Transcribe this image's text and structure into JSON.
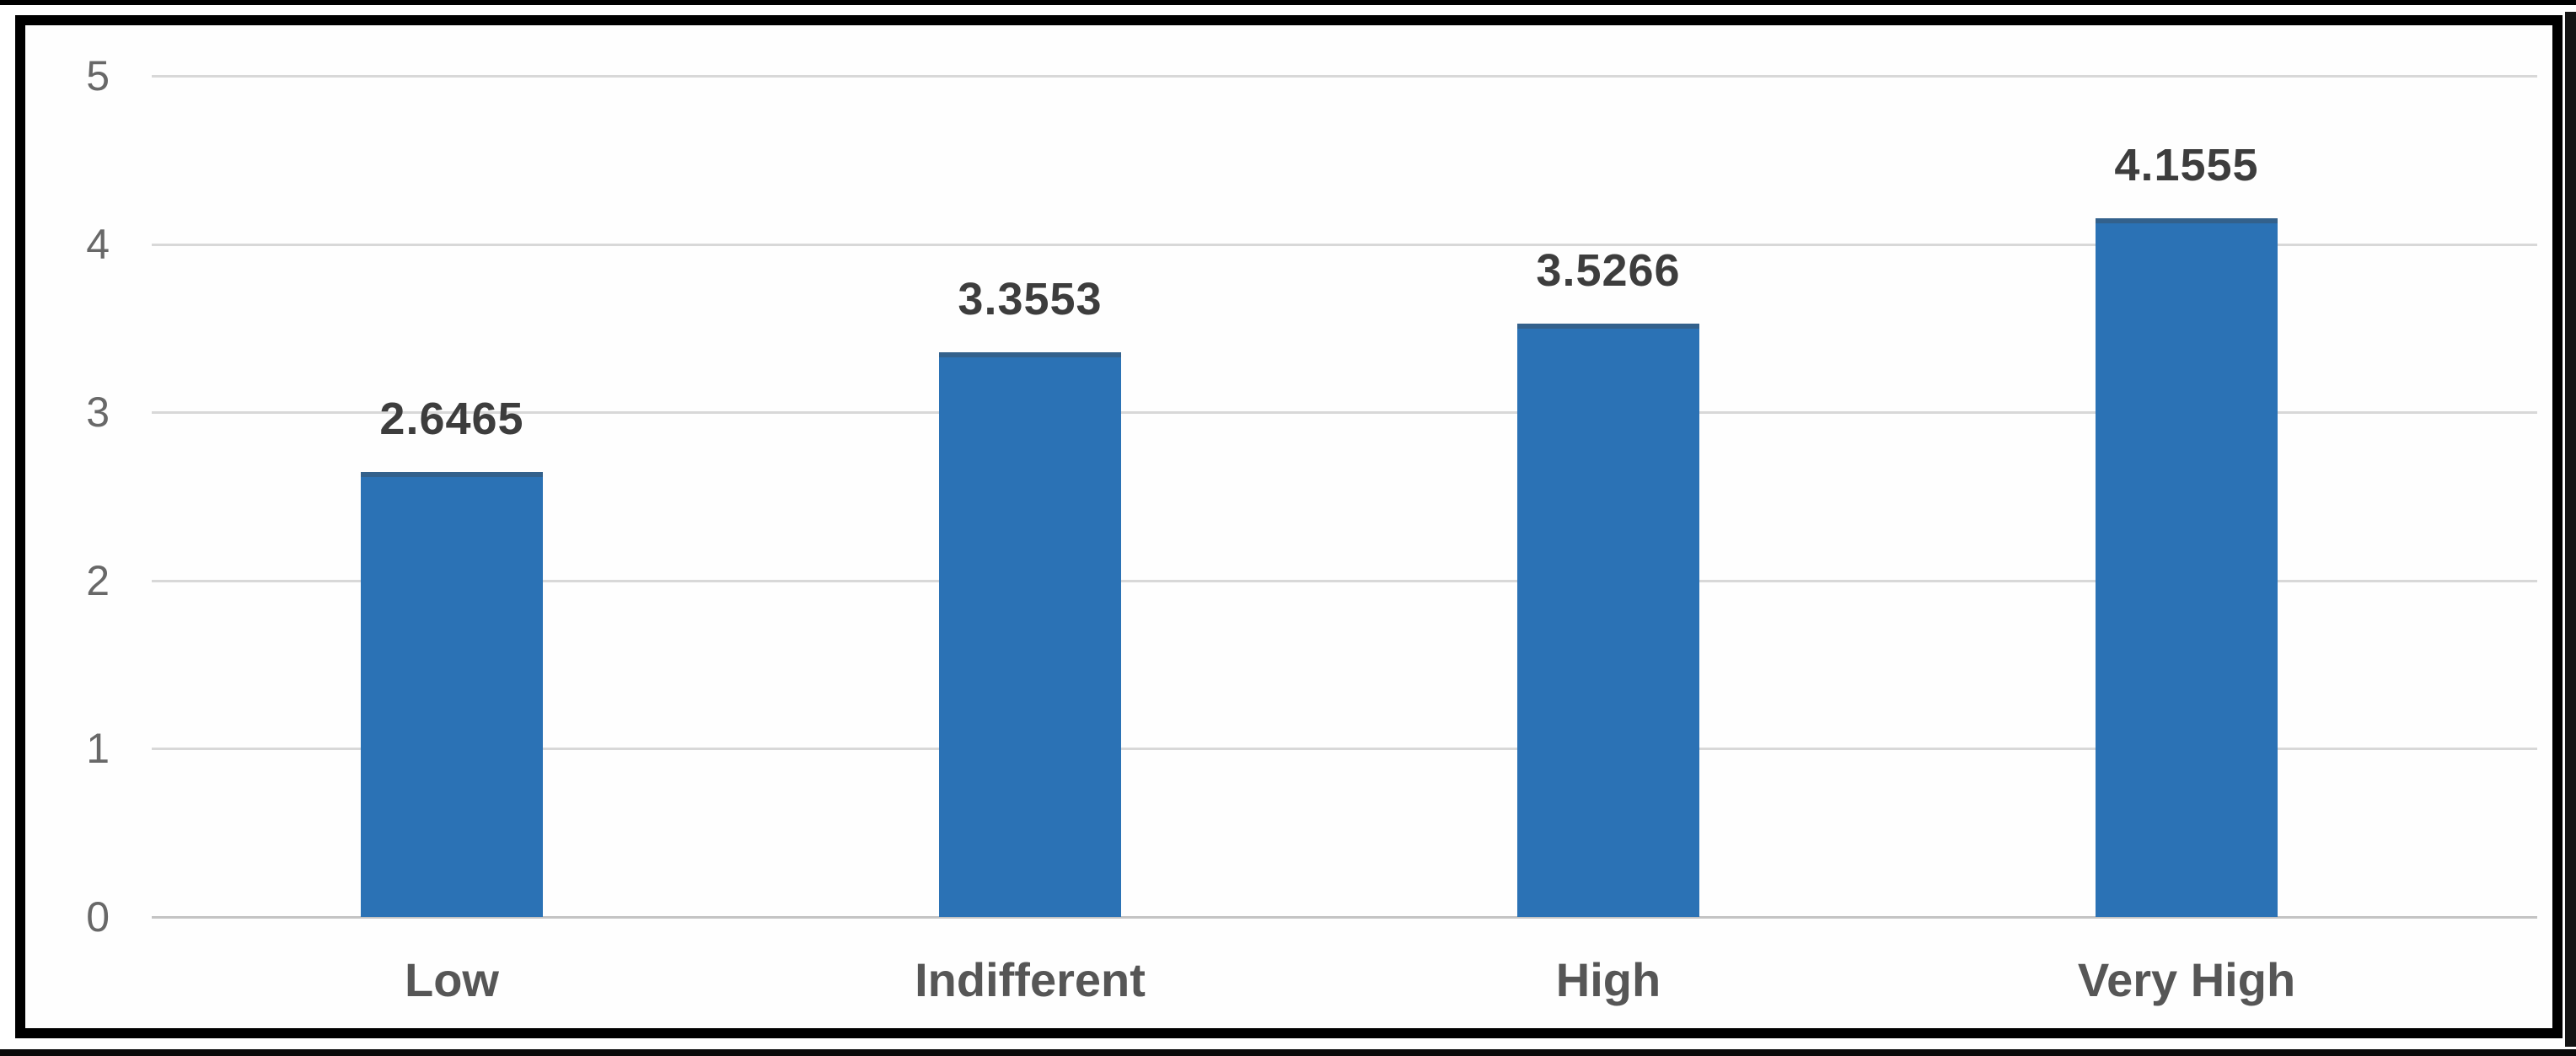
{
  "figure": {
    "kind": "excel-style column chart",
    "border_color": "#000000",
    "background_color": "#FFFFFF"
  },
  "chart_data": {
    "type": "bar",
    "title": "",
    "xlabel": "",
    "ylabel": "",
    "categories": [
      "Low",
      "Indifferent",
      "High",
      "Very High"
    ],
    "values": [
      2.6465,
      3.3553,
      3.5266,
      4.1555
    ],
    "value_labels": [
      "2.6465",
      "3.3553",
      "3.5266",
      "4.1555"
    ],
    "yticks": [
      "0",
      "1",
      "2",
      "3",
      "4",
      "5"
    ],
    "ylim": [
      0,
      5
    ],
    "grid": true,
    "legend": false,
    "colors": {
      "bar": "#2B72B5",
      "bar_top_edge": "#33618C",
      "value_label": "#3D3D3D",
      "category_label": "#565656",
      "ytick_label": "#686868",
      "gridline": "#D8D8D8",
      "axis_line": "#C4C4C4"
    }
  }
}
